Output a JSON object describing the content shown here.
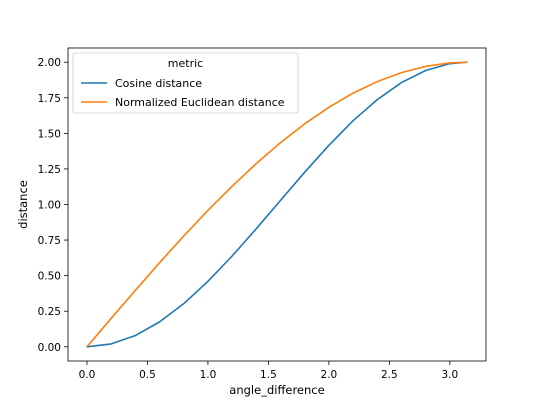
{
  "chart_data": {
    "type": "line",
    "title": "",
    "xlabel": "angle_difference",
    "ylabel": "distance",
    "xlim": [
      -0.157,
      3.299
    ],
    "ylim": [
      -0.1,
      2.1
    ],
    "xticks": [
      0.0,
      0.5,
      1.0,
      1.5,
      2.0,
      2.5,
      3.0
    ],
    "xtick_labels": [
      "0.0",
      "0.5",
      "1.0",
      "1.5",
      "2.0",
      "2.5",
      "3.0"
    ],
    "yticks": [
      0.0,
      0.25,
      0.5,
      0.75,
      1.0,
      1.25,
      1.5,
      1.75,
      2.0
    ],
    "ytick_labels": [
      "0.00",
      "0.25",
      "0.50",
      "0.75",
      "1.00",
      "1.25",
      "1.50",
      "1.75",
      "2.00"
    ],
    "grid": false,
    "legend": {
      "title": "metric",
      "placement": "top-left"
    },
    "series": [
      {
        "name": "Cosine distance",
        "color": "#1f77b4",
        "x": [
          0.0,
          0.2,
          0.4,
          0.6,
          0.8,
          1.0,
          1.2,
          1.4,
          1.6,
          1.8,
          2.0,
          2.2,
          2.4,
          2.6,
          2.8,
          3.0,
          3.1416
        ],
        "y": [
          0.0,
          0.02,
          0.079,
          0.175,
          0.303,
          0.46,
          0.638,
          0.83,
          1.029,
          1.227,
          1.416,
          1.589,
          1.737,
          1.857,
          1.942,
          1.99,
          2.0
        ]
      },
      {
        "name": "Normalized Euclidean distance",
        "color": "#ff7f0e",
        "x": [
          0.0,
          0.2,
          0.4,
          0.6,
          0.8,
          1.0,
          1.2,
          1.4,
          1.6,
          1.8,
          2.0,
          2.2,
          2.4,
          2.6,
          2.8,
          3.0,
          3.1416
        ],
        "y": [
          0.0,
          0.2,
          0.397,
          0.591,
          0.779,
          0.959,
          1.129,
          1.288,
          1.435,
          1.567,
          1.683,
          1.783,
          1.864,
          1.927,
          1.971,
          1.995,
          2.0
        ]
      }
    ]
  }
}
